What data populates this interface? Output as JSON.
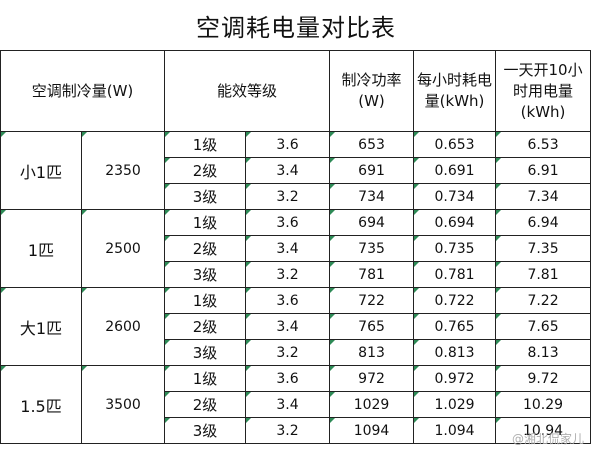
{
  "title": "空调耗电量对比表",
  "headers": {
    "capacity": "空调制冷量(W)",
    "efficiency": "能效等级",
    "power": "制冷功率(W)",
    "hourly": "每小时耗电量(kWh)",
    "daily": "一天开10小时用电量 (kWh)"
  },
  "groups": [
    {
      "size": "小1匹",
      "capacity": "2350",
      "rows": [
        {
          "grade": "1级",
          "ratio": "3.6",
          "power": "653",
          "hourly": "0.653",
          "daily": "6.53"
        },
        {
          "grade": "2级",
          "ratio": "3.4",
          "power": "691",
          "hourly": "0.691",
          "daily": "6.91"
        },
        {
          "grade": "3级",
          "ratio": "3.2",
          "power": "734",
          "hourly": "0.734",
          "daily": "7.34"
        }
      ]
    },
    {
      "size": "1匹",
      "capacity": "2500",
      "rows": [
        {
          "grade": "1级",
          "ratio": "3.6",
          "power": "694",
          "hourly": "0.694",
          "daily": "6.94"
        },
        {
          "grade": "2级",
          "ratio": "3.4",
          "power": "735",
          "hourly": "0.735",
          "daily": "7.35"
        },
        {
          "grade": "3级",
          "ratio": "3.2",
          "power": "781",
          "hourly": "0.781",
          "daily": "7.81"
        }
      ]
    },
    {
      "size": "大1匹",
      "capacity": "2600",
      "rows": [
        {
          "grade": "1级",
          "ratio": "3.6",
          "power": "722",
          "hourly": "0.722",
          "daily": "7.22"
        },
        {
          "grade": "2级",
          "ratio": "3.4",
          "power": "765",
          "hourly": "0.765",
          "daily": "7.65"
        },
        {
          "grade": "3级",
          "ratio": "3.2",
          "power": "813",
          "hourly": "0.813",
          "daily": "8.13"
        }
      ]
    },
    {
      "size": "1.5匹",
      "capacity": "3500",
      "rows": [
        {
          "grade": "1级",
          "ratio": "3.6",
          "power": "972",
          "hourly": "0.972",
          "daily": "9.72"
        },
        {
          "grade": "2级",
          "ratio": "3.4",
          "power": "1029",
          "hourly": "1.029",
          "daily": "10.29"
        },
        {
          "grade": "3级",
          "ratio": "3.2",
          "power": "1094",
          "hourly": "1.094",
          "daily": "10.94"
        }
      ]
    }
  ],
  "watermark": "@湘北侃家儿"
}
